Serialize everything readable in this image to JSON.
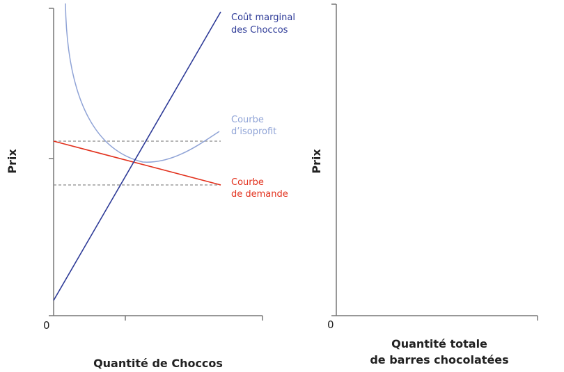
{
  "colors": {
    "axis": "#777777",
    "marginal_cost": "#2d3a97",
    "isoprofit": "#8fa3d6",
    "demand": "#e2311d",
    "dashed": "#8a8a8a"
  },
  "left_panel": {
    "y_axis_label": "Prix",
    "x_axis_label": "Quantité de Choccos",
    "origin_label": "0",
    "marginal_cost_label": [
      "Coût marginal",
      "des Choccos"
    ],
    "isoprofit_label": [
      "Courbe",
      "d’isoprofit"
    ],
    "demand_label": [
      "Courbe",
      "de demande"
    ]
  },
  "right_panel": {
    "y_axis_label": "Prix",
    "x_axis_label": [
      "Quantité totale",
      "de barres chocolatées"
    ],
    "origin_label": "0"
  }
}
